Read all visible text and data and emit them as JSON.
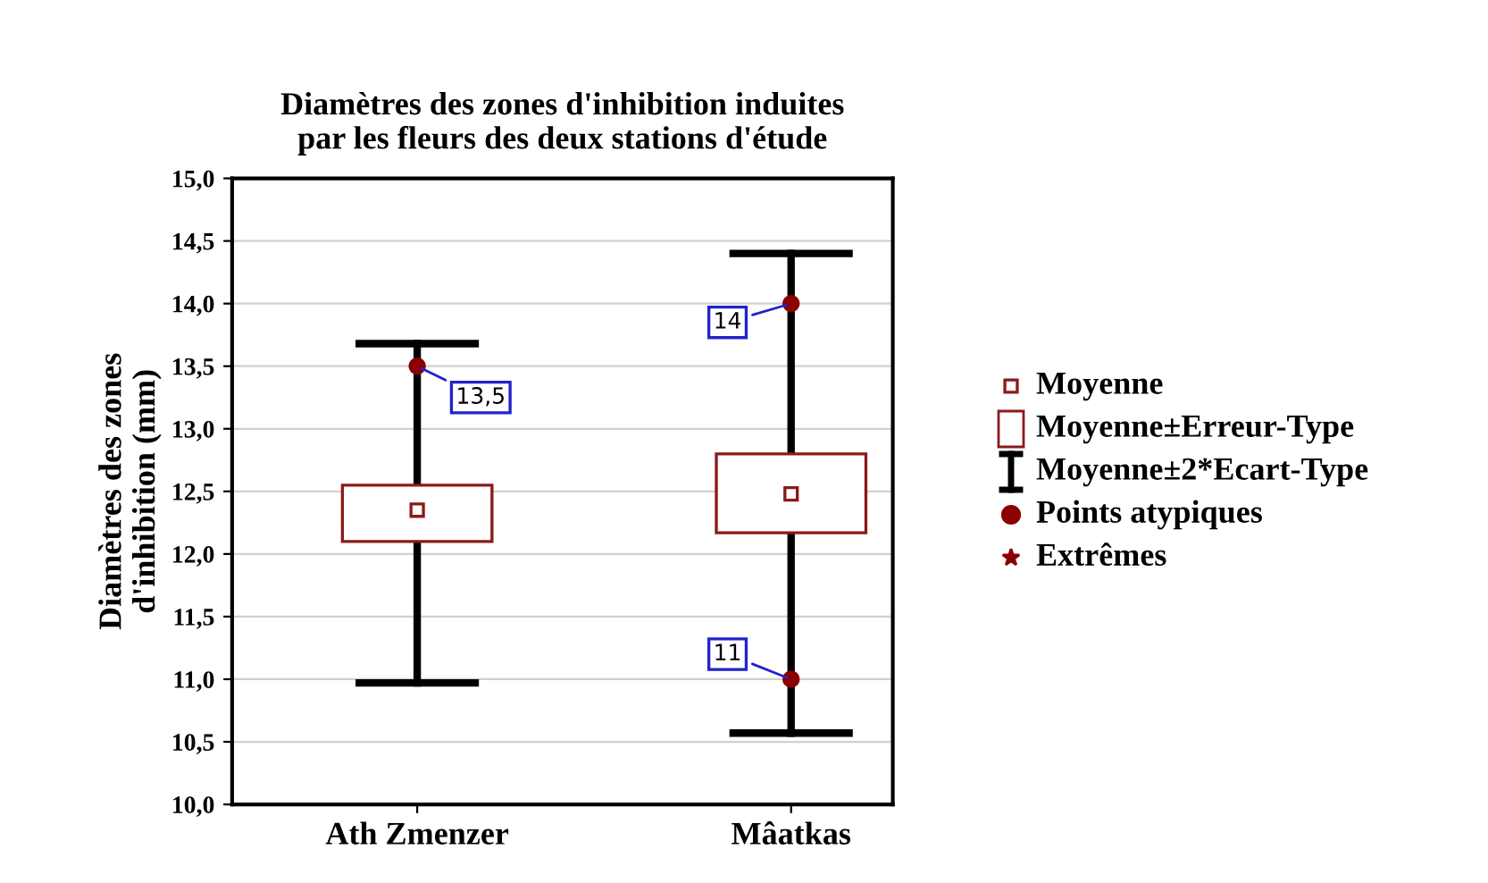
{
  "chart_data": {
    "type": "box",
    "title": "Diamètres des zones d'inhibition induites\npar les fleurs des deux stations d'étude",
    "ylabel": "Diamètres des zones\nd'inhibition (mm)",
    "categories": [
      "Ath Zmenzer",
      "Mâatkas"
    ],
    "boxes": [
      {
        "low": 10.97,
        "q1": 12.1,
        "median": 12.35,
        "q3": 12.55,
        "high": 13.68,
        "outliers": [
          13.5
        ]
      },
      {
        "low": 10.57,
        "q1": 12.17,
        "median": 12.48,
        "q3": 12.8,
        "high": 14.4,
        "outliers": [
          14,
          11
        ]
      }
    ],
    "ylim": [
      10,
      15
    ],
    "yticks": [
      {
        "value": 10,
        "label": "10,0"
      },
      {
        "value": 10.5,
        "label": "10,5"
      },
      {
        "value": 11,
        "label": "11,0"
      },
      {
        "value": 11.5,
        "label": "11,5"
      },
      {
        "value": 12,
        "label": "12,0"
      },
      {
        "value": 12.5,
        "label": "12,5"
      },
      {
        "value": 13,
        "label": "13,0"
      },
      {
        "value": 13.5,
        "label": "13,5"
      },
      {
        "value": 14,
        "label": "14,0"
      },
      {
        "value": 14.5,
        "label": "14,5"
      },
      {
        "value": 15,
        "label": "15,0"
      }
    ],
    "grid": "y",
    "annotations": [
      {
        "text": "13,5",
        "x": "Ath Zmenzer",
        "y": 13.5
      },
      {
        "text": "14",
        "x": "Mâatkas",
        "y": 14
      },
      {
        "text": "11",
        "x": "Mâatkas",
        "y": 11
      },
      "Moyenne",
      "Moyenne±Erreur-Type",
      "Moyenne±2*Ecart-Type",
      "Points atypiques",
      "Extrêmes"
    ]
  }
}
